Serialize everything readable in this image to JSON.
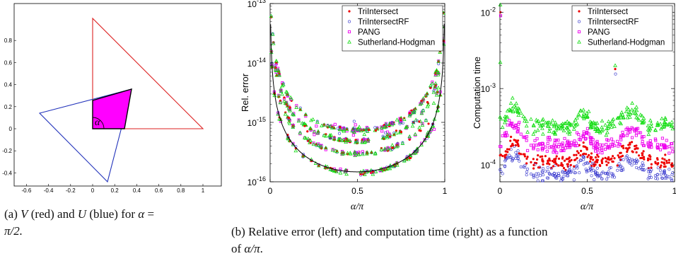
{
  "figure_a": {
    "x_ticks": [
      "-0.6",
      "-0.4",
      "-0.2",
      "0",
      "0.2",
      "0.4",
      "0.6",
      "0.8",
      "1"
    ],
    "y_ticks": [
      "-0.4",
      "-0.2",
      "0",
      "0.2",
      "0.4",
      "0.6",
      "0.8"
    ],
    "angle_label": "α",
    "colors": {
      "V": "#dd2222",
      "U": "#2233bb",
      "intersection": "#ff00ff"
    }
  },
  "figure_b_left": {
    "ylabel": "Rel. error",
    "xlabel": "α/π",
    "x_ticks": [
      "0",
      "0.5",
      "1"
    ],
    "y_ticks": [
      {
        "base": "10",
        "exp": "-13"
      },
      {
        "base": "10",
        "exp": "-14"
      },
      {
        "base": "10",
        "exp": "-15"
      },
      {
        "base": "10",
        "exp": "-16"
      }
    ],
    "legend": [
      "TriIntersect",
      "TriIntersectRF",
      "PANG",
      "Sutherland-Hodgman"
    ]
  },
  "figure_b_right": {
    "ylabel": "Computation time",
    "xlabel": "α/π",
    "x_ticks": [
      "0",
      "0.5",
      "1"
    ],
    "y_ticks": [
      {
        "base": "10",
        "exp": "-2"
      },
      {
        "base": "10",
        "exp": "-3"
      },
      {
        "base": "10",
        "exp": "-4"
      }
    ],
    "legend": [
      "TriIntersect",
      "TriIntersectRF",
      "PANG",
      "Sutherland-Hodgman"
    ]
  },
  "series_colors": {
    "TriIntersect": "#ee0000",
    "TriIntersectRF": "#3333cc",
    "PANG": "#ee00ee",
    "Sutherland-Hodgman": "#11dd11"
  },
  "chart_data": [
    {
      "type": "line",
      "title": "",
      "xlabel": "",
      "ylabel": "",
      "xlim": [
        -0.6,
        1.0
      ],
      "ylim": [
        -0.5,
        0.95
      ],
      "series": [
        {
          "x": [
            0,
            0,
            1,
            0
          ],
          "y": [
            0,
            0.88,
            0,
            0
          ]
        },
        {
          "x": [
            -0.48,
            0.35,
            0.13,
            -0.48
          ],
          "y": [
            0.13,
            0.35,
            -0.48,
            0.13
          ]
        }
      ]
    },
    {
      "type": "scatter",
      "xlabel": "α/π",
      "ylabel": "Rel. error",
      "ylog": true,
      "xlim": [
        0,
        1
      ],
      "ylim": [
        1e-16,
        1e-13
      ],
      "legend": "top-right",
      "series": [
        {
          "name": "TriIntersect",
          "trend": "U-shaped, min ~1.5e-16 near 0.5, up to ~3e-14 at edges"
        },
        {
          "name": "TriIntersectRF",
          "trend": "U-shaped, similar to TriIntersect"
        },
        {
          "name": "PANG",
          "trend": "U-shaped, similar to TriIntersect"
        },
        {
          "name": "Sutherland-Hodgman",
          "trend": "U-shaped, bands between 1.5e-16 and 1e-15"
        }
      ]
    },
    {
      "type": "scatter",
      "xlabel": "α/π",
      "ylabel": "Computation time",
      "ylog": true,
      "xlim": [
        0,
        1
      ],
      "ylim": [
        6e-05,
        0.013
      ],
      "legend": "top-right",
      "series": [
        {
          "name": "TriIntersect",
          "typical": 0.00011
        },
        {
          "name": "TriIntersectRF",
          "typical": 7.5e-05
        },
        {
          "name": "PANG",
          "typical": 0.00018
        },
        {
          "name": "Sutherland-Hodgman",
          "typical": 0.00032
        }
      ]
    }
  ],
  "captions": {
    "a_line1_pre": "(a) ",
    "a_V": "V",
    "a_mid": " (red) and ",
    "a_U": "U",
    "a_post": " (blue) for ",
    "a_alpha": "α",
    "a_eq": " =",
    "a_line2": "π/2.",
    "b_line1": "(b) Relative error (left) and computation time (right) as a function",
    "b_line2_pre": "of ",
    "b_line2_math": "α/π",
    "b_line2_post": "."
  }
}
